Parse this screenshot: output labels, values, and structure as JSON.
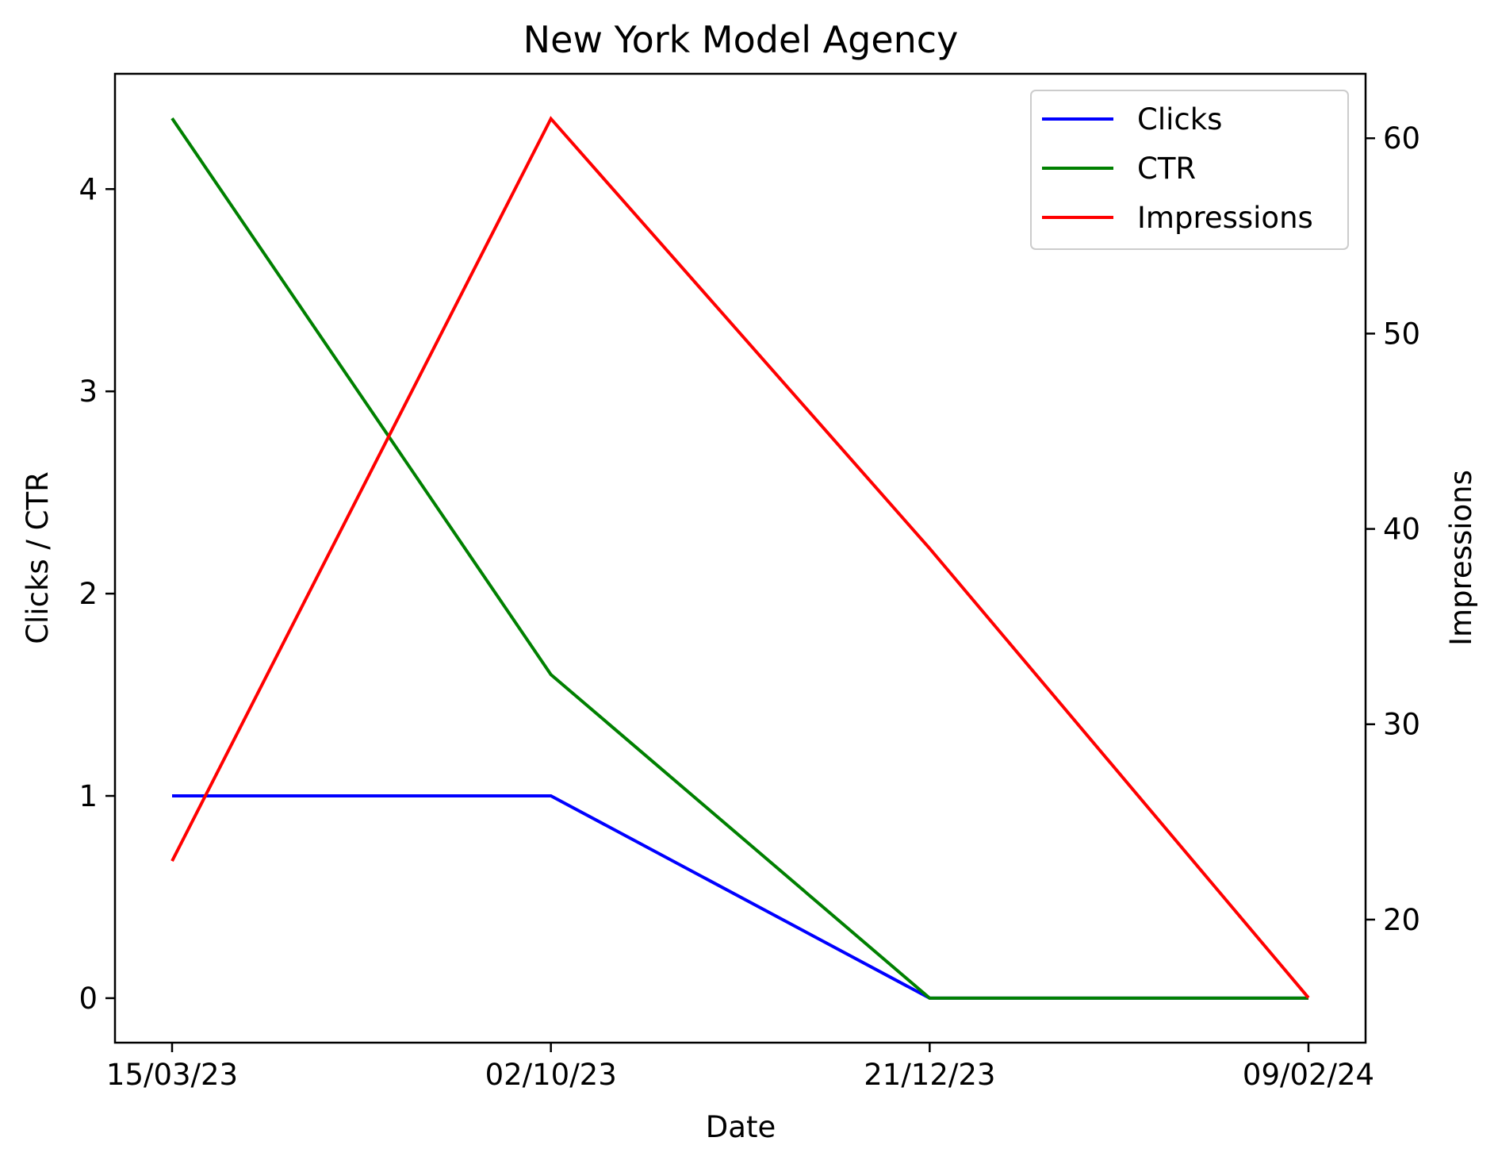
{
  "chart_data": {
    "type": "line",
    "title": "New York Model Agency",
    "xlabel": "Date",
    "ylabel": "Clicks / CTR",
    "y2label": "Impressions",
    "categories": [
      "15/03/23",
      "02/10/23",
      "21/12/23",
      "09/02/24"
    ],
    "ylim": [
      -0.22,
      4.57
    ],
    "y2lim": [
      13.7,
      63.3
    ],
    "yticks": [
      0,
      1,
      2,
      3,
      4
    ],
    "y2ticks": [
      20,
      30,
      40,
      50,
      60
    ],
    "grid": false,
    "legend_position": "top-right",
    "series": [
      {
        "name": "Clicks",
        "axis": "left",
        "color": "#0000ff",
        "values": [
          1,
          1,
          0,
          0
        ]
      },
      {
        "name": "CTR",
        "axis": "left",
        "color": "#008000",
        "values": [
          4.35,
          1.6,
          0,
          0
        ]
      },
      {
        "name": "Impressions",
        "axis": "right",
        "color": "#ff0000",
        "values": [
          23,
          61,
          39,
          16
        ]
      }
    ]
  }
}
